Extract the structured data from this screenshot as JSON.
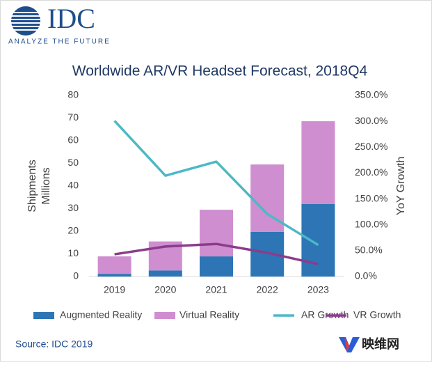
{
  "logo": {
    "name": "IDC",
    "tagline": "ANALYZE THE FUTURE"
  },
  "chart_data": {
    "type": "bar",
    "stacked": true,
    "title": "Worldwide AR/VR Headset Forecast, 2018Q4",
    "ylabel": [
      "Shipments",
      "Millions"
    ],
    "y2label": "YoY Growth",
    "categories": [
      "2019",
      "2020",
      "2021",
      "2022",
      "2023"
    ],
    "series": [
      {
        "name": "Augmented Reality",
        "type": "bar",
        "color": "#2e75b6",
        "values": [
          1.2,
          2.7,
          8.9,
          19.7,
          32
        ]
      },
      {
        "name": "Virtual Reality",
        "type": "bar",
        "color": "#cf8ecf",
        "values": [
          7.7,
          12.8,
          20.6,
          29.8,
          36.6
        ]
      },
      {
        "name": "AR Growth",
        "type": "line",
        "axis": "y2",
        "color": "#4cb9c5",
        "values": [
          301,
          195,
          222,
          121,
          61
        ]
      },
      {
        "name": "VR Growth",
        "type": "line",
        "axis": "y2",
        "color": "#8b3c8b",
        "values": [
          43,
          58,
          63,
          46,
          24
        ]
      }
    ],
    "ylim": [
      0,
      80
    ],
    "yticks": [
      0,
      10,
      20,
      30,
      40,
      50,
      60,
      70,
      80
    ],
    "y2lim": [
      0,
      350
    ],
    "y2ticks": [
      {
        "value": 0,
        "label": "0.0%"
      },
      {
        "value": 50,
        "label": "50.0%"
      },
      {
        "value": 100,
        "label": "100.0%"
      },
      {
        "value": 150,
        "label": "150.0%"
      },
      {
        "value": 200,
        "label": "200.0%"
      },
      {
        "value": 250,
        "label": "250.0%"
      },
      {
        "value": 300,
        "label": "300.0%"
      },
      {
        "value": 350,
        "label": "350.0%"
      }
    ],
    "legend": "bottom",
    "source": "Source: IDC 2019"
  },
  "watermark": "映维网"
}
